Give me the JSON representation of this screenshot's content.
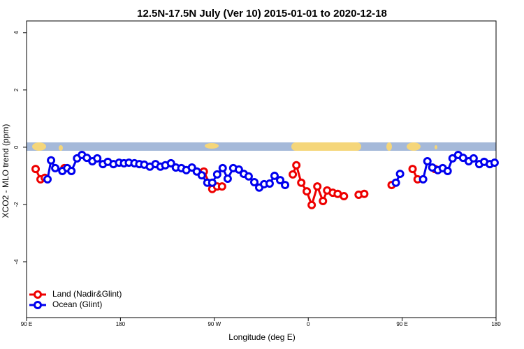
{
  "chart_data": {
    "type": "line",
    "title": "12.5N-17.5N July (Ver 10)   2015-01-01 to 2020-12-18",
    "x_label": "Longitude (deg E)",
    "y_label": "XCO2 - MLO trend (ppm)",
    "xlim": [
      90,
      540
    ],
    "ylim": [
      -5.95,
      4.41
    ],
    "xticks": [
      {
        "value": 90,
        "label": "90 E"
      },
      {
        "value": 180,
        "label": "180"
      },
      {
        "value": 270,
        "label": "90 W"
      },
      {
        "value": 360,
        "label": "0"
      },
      {
        "value": 450,
        "label": "90 E"
      },
      {
        "value": 540,
        "label": "180"
      }
    ],
    "yticks": [
      -4,
      -2,
      0,
      2,
      4
    ],
    "grid": false,
    "legend": "lower left",
    "series": [
      {
        "name": "Land (Nadir&Glint)",
        "color": "#ee0000",
        "x": [
          98.7,
          103.4,
          107.5,
          null,
          126.3,
          null,
          259.9,
          268.0,
          272.7,
          277.4,
          null,
          345.2,
          348.6,
          353.3,
          358.6,
          363.3,
          368.7,
          374.1,
          378.1,
          383.5,
          388.2,
          394.2,
          null,
          408.3,
          413.7,
          null,
          439.9,
          null,
          460.0,
          464.8,
          null,
          481.5
        ],
        "values": [
          -0.76,
          -1.12,
          -1.07,
          null,
          -0.73,
          null,
          -0.85,
          -1.46,
          -1.37,
          -1.37,
          null,
          -0.95,
          -0.63,
          -1.24,
          -1.54,
          -2.02,
          -1.37,
          -1.88,
          -1.51,
          -1.59,
          -1.63,
          -1.71,
          null,
          -1.66,
          -1.63,
          null,
          -1.32,
          null,
          -0.76,
          -1.12,
          null,
          -0.76
        ]
      },
      {
        "name": "Ocean (Glint)",
        "color": "#0000ee",
        "x": [
          110.1,
          113.5,
          117.5,
          124.3,
          129.0,
          133.0,
          138.4,
          143.1,
          147.8,
          153.1,
          157.8,
          163.2,
          167.9,
          173.3,
          178.7,
          183.4,
          188.1,
          193.4,
          198.1,
          202.8,
          208.2,
          213.6,
          218.3,
          223.0,
          228.4,
          233.1,
          238.4,
          243.1,
          248.5,
          253.2,
          257.9,
          263.3,
          268.0,
          272.7,
          278.0,
          282.8,
          288.1,
          293.5,
          298.2,
          302.9,
          308.3,
          313.0,
          317.7,
          323.0,
          327.7,
          333.1,
          337.8,
          null,
          444.0,
          448.0,
          null,
          470.1,
          474.2,
          478.9,
          484.2,
          488.9,
          493.6,
          498.3,
          503.7,
          508.4,
          513.8,
          518.5,
          523.9,
          528.6,
          534.0,
          538.6
        ],
        "values": [
          -1.12,
          -0.46,
          -0.73,
          -0.83,
          -0.73,
          -0.83,
          -0.39,
          -0.27,
          -0.37,
          -0.49,
          -0.39,
          -0.59,
          -0.51,
          -0.59,
          -0.54,
          -0.56,
          -0.54,
          -0.56,
          -0.59,
          -0.61,
          -0.68,
          -0.59,
          -0.68,
          -0.63,
          -0.56,
          -0.71,
          -0.73,
          -0.8,
          -0.71,
          -0.85,
          -0.98,
          -1.24,
          -1.24,
          -0.95,
          -0.73,
          -1.1,
          -0.73,
          -0.78,
          -0.93,
          -1.02,
          -1.22,
          -1.41,
          -1.29,
          -1.27,
          -1.0,
          -1.15,
          -1.32,
          null,
          -1.24,
          -0.93,
          null,
          -1.12,
          -0.49,
          -0.71,
          -0.8,
          -0.73,
          -0.83,
          -0.39,
          -0.27,
          -0.37,
          -0.49,
          -0.39,
          -0.59,
          -0.51,
          -0.59,
          -0.54
        ]
      }
    ]
  }
}
